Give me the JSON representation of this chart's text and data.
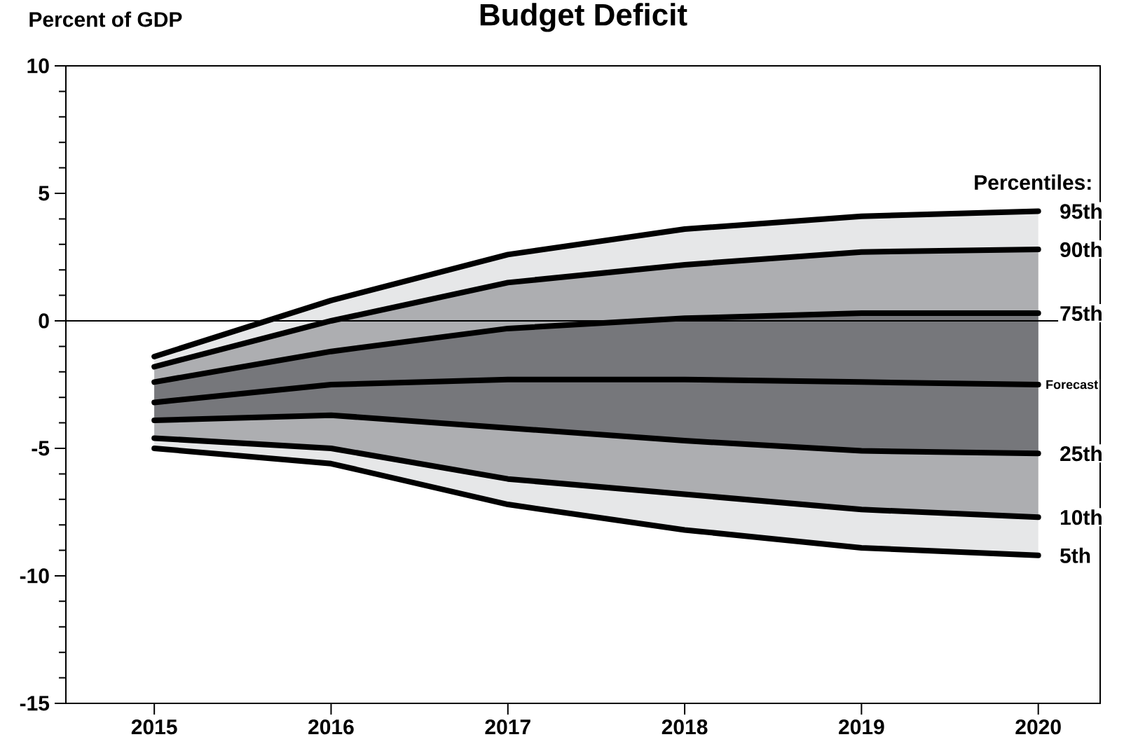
{
  "chart_data": {
    "type": "line",
    "title": "Budget Deficit",
    "ylabel": "Percent of GDP",
    "legend_title": "Percentiles:",
    "legend": "right",
    "x": [
      2015,
      2016,
      2017,
      2018,
      2019,
      2020
    ],
    "xlim": [
      2014.5,
      2020.35
    ],
    "xticks": [
      2015,
      2016,
      2017,
      2018,
      2019,
      2020
    ],
    "ylim": [
      -15,
      10
    ],
    "yticks": [
      -15,
      -10,
      -5,
      0,
      5,
      10
    ],
    "ref_lines": [
      {
        "axis": "y",
        "value": 0,
        "color": "#000000"
      }
    ],
    "colors": [
      "#e6e7e8",
      "#adaeb1",
      "#76777b"
    ],
    "series": [
      {
        "name": "95th",
        "color": "#000000",
        "values": [
          -1.4,
          0.8,
          2.6,
          3.6,
          4.1,
          4.3
        ],
        "upper": [
          -1.4,
          0.8,
          2.6,
          3.6,
          4.1,
          4.3
        ],
        "lower": [
          -5.0,
          -5.6,
          -7.2,
          -8.2,
          -8.9,
          -9.2
        ]
      },
      {
        "name": "90th",
        "color": "#000000",
        "values": [
          -1.8,
          0.0,
          1.5,
          2.2,
          2.7,
          2.8
        ],
        "upper": [
          -1.8,
          0.0,
          1.5,
          2.2,
          2.7,
          2.8
        ],
        "lower": [
          -4.6,
          -5.0,
          -6.2,
          -6.8,
          -7.4,
          -7.7
        ]
      },
      {
        "name": "75th",
        "color": "#000000",
        "values": [
          -2.4,
          -1.2,
          -0.3,
          0.1,
          0.3,
          0.3
        ],
        "upper": [
          -2.4,
          -1.2,
          -0.3,
          0.1,
          0.3,
          0.3
        ],
        "lower": [
          -3.9,
          -3.7,
          -4.2,
          -4.7,
          -5.1,
          -5.2
        ]
      },
      {
        "name": "Forecast",
        "color": "#000000",
        "values": [
          -3.2,
          -2.5,
          -2.3,
          -2.3,
          -2.4,
          -2.5
        ]
      },
      {
        "name": "25th",
        "color": "#000000",
        "values": [
          -3.9,
          -3.7,
          -4.2,
          -4.7,
          -5.1,
          -5.2
        ]
      },
      {
        "name": "10th",
        "color": "#000000",
        "values": [
          -4.6,
          -5.0,
          -6.2,
          -6.8,
          -7.4,
          -7.7
        ]
      },
      {
        "name": "5th",
        "color": "#000000",
        "values": [
          -5.0,
          -5.6,
          -7.2,
          -8.2,
          -8.9,
          -9.2
        ]
      }
    ]
  }
}
